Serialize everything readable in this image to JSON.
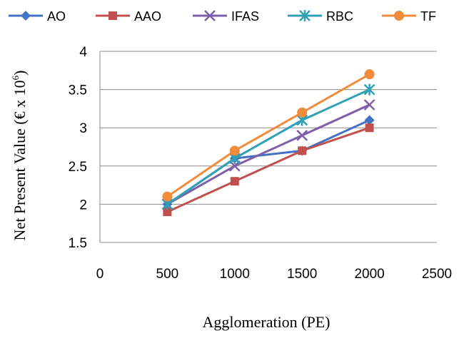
{
  "chart_data": {
    "type": "line",
    "xlabel": "Agglomeration (PE)",
    "ylabel": {
      "text": "Net Present Value (€  x 10",
      "superscript": "6",
      "closing": ")"
    },
    "xlim": [
      0,
      2500
    ],
    "ylim": [
      1.5,
      4
    ],
    "x_ticks": [
      "0",
      "500",
      "1000",
      "1500",
      "2000",
      "2500"
    ],
    "y_ticks": [
      "1.5",
      "2",
      "2.5",
      "3",
      "3.5",
      "4"
    ],
    "grid": "horizontal",
    "legend_position": "top",
    "x": [
      500,
      1000,
      1500,
      2000
    ],
    "series": [
      {
        "name": "AO",
        "color": "#4472C4",
        "marker": "diamond",
        "values": [
          2.0,
          2.6,
          2.7,
          3.1
        ]
      },
      {
        "name": "AAO",
        "color": "#C0504D",
        "marker": "square",
        "values": [
          1.9,
          2.3,
          2.7,
          3.0
        ]
      },
      {
        "name": "IFAS",
        "color": "#7F5FA8",
        "marker": "x",
        "values": [
          2.0,
          2.5,
          2.9,
          3.3
        ]
      },
      {
        "name": "RBC",
        "color": "#2FA0B5",
        "marker": "star",
        "values": [
          2.0,
          2.6,
          3.1,
          3.5
        ]
      },
      {
        "name": "TF",
        "color": "#F08C3A",
        "marker": "circle",
        "values": [
          2.1,
          2.7,
          3.2,
          3.7
        ]
      }
    ]
  }
}
